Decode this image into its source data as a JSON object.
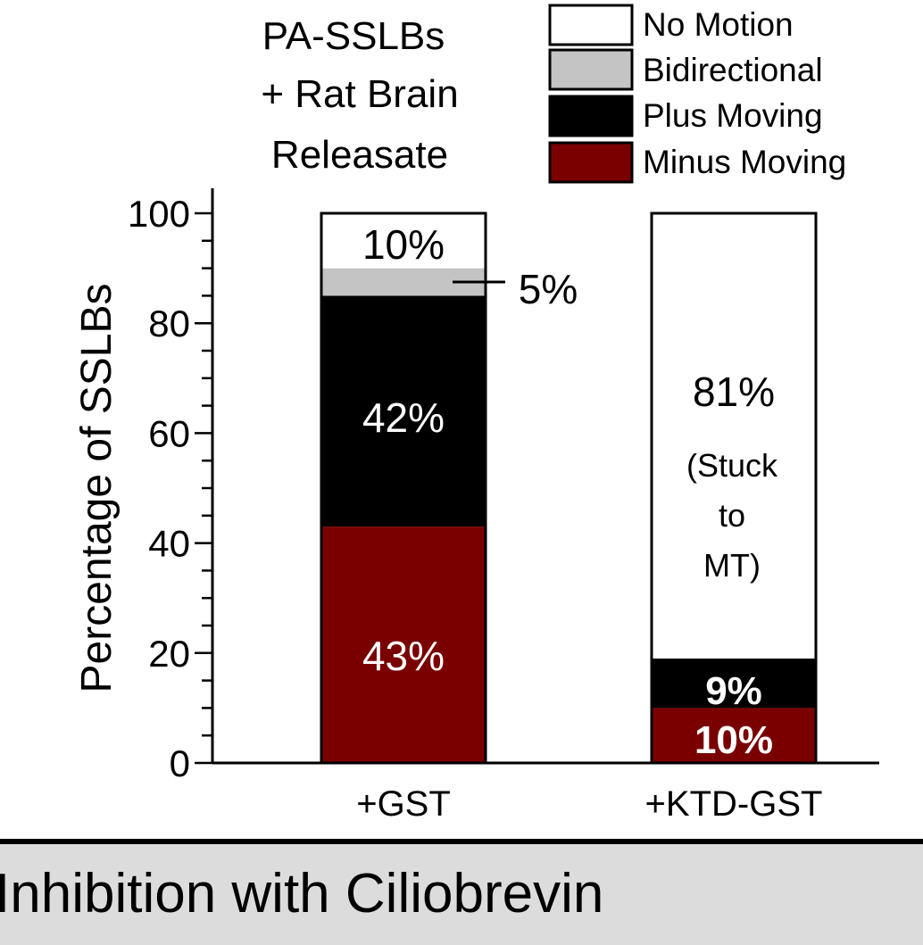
{
  "chart_data": {
    "type": "bar",
    "stacked": true,
    "title": [
      "PA-SSLBs",
      "+ Rat Brain",
      "Releasate"
    ],
    "ylabel": "Percentage of SSLBs",
    "xlabel": "",
    "ylim": [
      0,
      100
    ],
    "yticks": [
      "0",
      "20",
      "40",
      "60",
      "80",
      "100"
    ],
    "categories": [
      "+GST",
      "+KTD-GST"
    ],
    "legend_position": "top-right",
    "series": [
      {
        "name": "Minus Moving",
        "color": "#7a0000",
        "values": [
          43,
          10
        ]
      },
      {
        "name": "Plus Moving",
        "color": "#000000",
        "values": [
          42,
          9
        ]
      },
      {
        "name": "Bidirectional",
        "color": "#c4c4c4",
        "values": [
          5,
          0
        ]
      },
      {
        "name": "No Motion",
        "color": "#ffffff",
        "values": [
          10,
          81
        ]
      }
    ],
    "legend": [
      "No Motion",
      "Bidirectional",
      "Plus Moving",
      "Minus Moving"
    ],
    "data_labels": {
      "gst": {
        "minus": "43%",
        "plus": "42%",
        "bidirectional": "5%",
        "no_motion": "10%"
      },
      "ktd": {
        "minus": "10%",
        "plus": "9%",
        "no_motion": "81%",
        "note_lines": [
          "(Stuck",
          "to",
          "MT)"
        ]
      }
    }
  },
  "footer": {
    "caption": "Inhibition with Ciliobrevin"
  }
}
